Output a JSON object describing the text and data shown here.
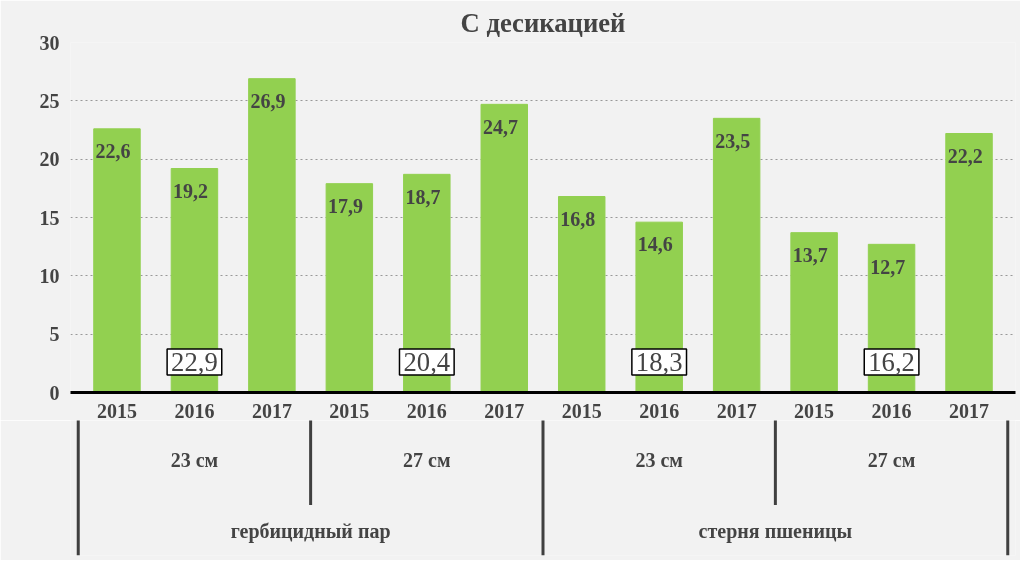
{
  "chart_data": {
    "type": "bar",
    "title": "С десикацией",
    "categories": [
      "2015",
      "2016",
      "2017",
      "2015",
      "2016",
      "2017",
      "2015",
      "2016",
      "2017",
      "2015",
      "2016",
      "2017"
    ],
    "values": [
      22.6,
      19.2,
      26.9,
      17.9,
      18.7,
      24.7,
      16.8,
      14.6,
      23.5,
      13.7,
      12.7,
      22.2
    ],
    "value_labels": [
      "22,6",
      "19,2",
      "26,9",
      "17,9",
      "18,7",
      "24,7",
      "16,8",
      "14,6",
      "23,5",
      "13,7",
      "12,7",
      "22,2"
    ],
    "color": "#92d050",
    "ylim": [
      0,
      30
    ],
    "yticks": [
      0,
      5,
      10,
      15,
      20,
      25,
      30
    ],
    "grid": "y",
    "annotations": [
      "22,9",
      "20,4",
      "18,3",
      "16,2",
      "23 см",
      "27 см",
      "23 см",
      "27 см",
      "гербицидный пар",
      "стерня пшеницы"
    ]
  }
}
